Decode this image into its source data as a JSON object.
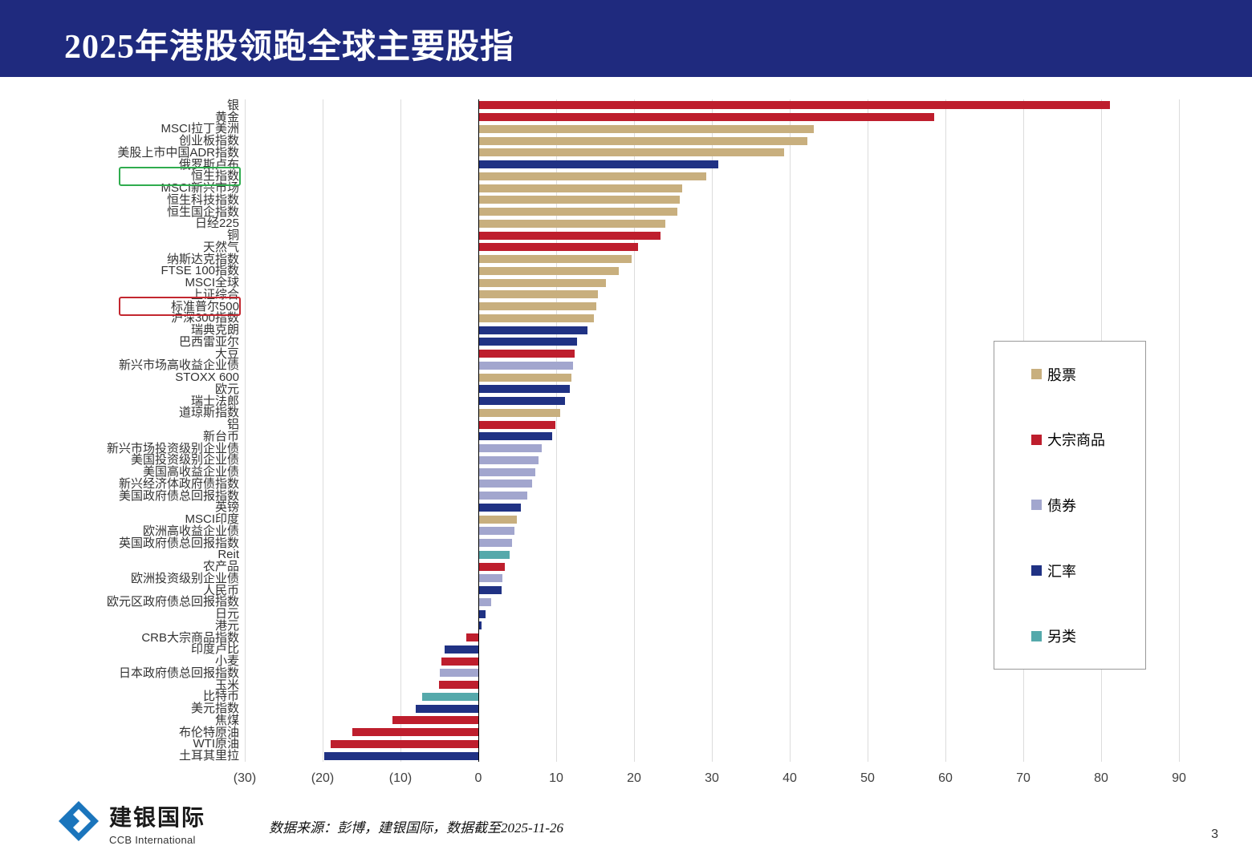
{
  "header": {
    "title": "2025年港股领跑全球主要股指",
    "bg_color": "#1F2A7E"
  },
  "chart_data": {
    "type": "bar",
    "orientation": "horizontal",
    "unit": "%",
    "xlim": [
      -30,
      90
    ],
    "x_ticks": [
      -30,
      -20,
      -10,
      0,
      10,
      20,
      30,
      40,
      50,
      60,
      70,
      80,
      90
    ],
    "x_tick_labels": [
      "(30)",
      "(20)",
      "(10)",
      "0",
      "10",
      "20",
      "30",
      "40",
      "50",
      "60",
      "70",
      "80",
      "90"
    ],
    "grid": true,
    "legend_position": "right",
    "category_colors": {
      "股票": "#C8AF7E",
      "大宗商品": "#BE1E2D",
      "债券": "#A2A6CE",
      "汇率": "#203284",
      "另类": "#55A9AB"
    },
    "legend": [
      {
        "label": "股票",
        "color": "#C8AF7E"
      },
      {
        "label": "大宗商品",
        "color": "#BE1E2D"
      },
      {
        "label": "债券",
        "color": "#A2A6CE"
      },
      {
        "label": "汇率",
        "color": "#203284"
      },
      {
        "label": "另类",
        "color": "#55A9AB"
      }
    ],
    "items": [
      {
        "label": "银",
        "category": "大宗商品",
        "value": 81.0
      },
      {
        "label": "黄金",
        "category": "大宗商品",
        "value": 58.5
      },
      {
        "label": "MSCI拉丁美洲",
        "category": "股票",
        "value": 43.0
      },
      {
        "label": "创业板指数",
        "category": "股票",
        "value": 42.2
      },
      {
        "label": "美股上市中国ADR指数",
        "category": "股票",
        "value": 39.2
      },
      {
        "label": "俄罗斯卢布",
        "category": "汇率",
        "value": 30.7
      },
      {
        "label": "恒生指数",
        "category": "股票",
        "value": 29.2,
        "highlight": "green"
      },
      {
        "label": "MSCI新兴市场",
        "category": "股票",
        "value": 26.1
      },
      {
        "label": "恒生科技指数",
        "category": "股票",
        "value": 25.8
      },
      {
        "label": "恒生国企指数",
        "category": "股票",
        "value": 25.5
      },
      {
        "label": "日经225",
        "category": "股票",
        "value": 23.9
      },
      {
        "label": "铜",
        "category": "大宗商品",
        "value": 23.3
      },
      {
        "label": "天然气",
        "category": "大宗商品",
        "value": 20.4
      },
      {
        "label": "纳斯达克指数",
        "category": "股票",
        "value": 19.6
      },
      {
        "label": "FTSE 100指数",
        "category": "股票",
        "value": 17.9
      },
      {
        "label": "MSCI全球",
        "category": "股票",
        "value": 16.3
      },
      {
        "label": "上证综合",
        "category": "股票",
        "value": 15.3
      },
      {
        "label": "标准普尔500",
        "category": "股票",
        "value": 15.0,
        "highlight": "red"
      },
      {
        "label": "沪深300指数",
        "category": "股票",
        "value": 14.7
      },
      {
        "label": "瑞典克朗",
        "category": "汇率",
        "value": 13.9
      },
      {
        "label": "巴西雷亚尔",
        "category": "汇率",
        "value": 12.6
      },
      {
        "label": "大豆",
        "category": "大宗商品",
        "value": 12.3
      },
      {
        "label": "新兴市场高收益企业债",
        "category": "债券",
        "value": 12.1
      },
      {
        "label": "STOXX 600",
        "category": "股票",
        "value": 11.9
      },
      {
        "label": "欧元",
        "category": "汇率",
        "value": 11.7
      },
      {
        "label": "瑞士法郎",
        "category": "汇率",
        "value": 11.0
      },
      {
        "label": "道琼斯指数",
        "category": "股票",
        "value": 10.4
      },
      {
        "label": "铝",
        "category": "大宗商品",
        "value": 9.8
      },
      {
        "label": "新台币",
        "category": "汇率",
        "value": 9.4
      },
      {
        "label": "新兴市场投资级别企业债",
        "category": "债券",
        "value": 8.0
      },
      {
        "label": "美国投资级别企业债",
        "category": "债券",
        "value": 7.6
      },
      {
        "label": "美国高收益企业债",
        "category": "债券",
        "value": 7.2
      },
      {
        "label": "新兴经济体政府债指数",
        "category": "债券",
        "value": 6.8
      },
      {
        "label": "美国政府债总回报指数",
        "category": "债券",
        "value": 6.2
      },
      {
        "label": "英镑",
        "category": "汇率",
        "value": 5.4
      },
      {
        "label": "MSCI印度",
        "category": "股票",
        "value": 4.8
      },
      {
        "label": "欧洲高收益企业债",
        "category": "债券",
        "value": 4.5
      },
      {
        "label": "英国政府债总回报指数",
        "category": "债券",
        "value": 4.2
      },
      {
        "label": "Reit",
        "category": "另类",
        "value": 3.9
      },
      {
        "label": "农产品",
        "category": "大宗商品",
        "value": 3.3
      },
      {
        "label": "欧洲投资级别企业债",
        "category": "债券",
        "value": 3.0
      },
      {
        "label": "人民币",
        "category": "汇率",
        "value": 2.9
      },
      {
        "label": "欧元区政府债总回报指数",
        "category": "债券",
        "value": 1.5
      },
      {
        "label": "日元",
        "category": "汇率",
        "value": 0.8
      },
      {
        "label": "港元",
        "category": "汇率",
        "value": 0.3
      },
      {
        "label": "CRB大宗商品指数",
        "category": "大宗商品",
        "value": -1.5
      },
      {
        "label": "印度卢比",
        "category": "汇率",
        "value": -4.3
      },
      {
        "label": "小麦",
        "category": "大宗商品",
        "value": -4.7
      },
      {
        "label": "日本政府债总回报指数",
        "category": "债券",
        "value": -4.9
      },
      {
        "label": "玉米",
        "category": "大宗商品",
        "value": -5.1
      },
      {
        "label": "比特币",
        "category": "另类",
        "value": -7.2
      },
      {
        "label": "美元指数",
        "category": "汇率",
        "value": -8.0
      },
      {
        "label": "焦煤",
        "category": "大宗商品",
        "value": -11.0
      },
      {
        "label": "布伦特原油",
        "category": "大宗商品",
        "value": -16.2
      },
      {
        "label": "WTI原油",
        "category": "大宗商品",
        "value": -19.0
      },
      {
        "label": "土耳其里拉",
        "category": "汇率",
        "value": -19.8
      }
    ]
  },
  "annotations": {
    "green_box_label": "恒生指数",
    "green_box_color": "#2FAC4E",
    "red_box_label": "标准普尔500",
    "red_box_color": "#C3272F"
  },
  "footer": {
    "logo_text": "建银国际",
    "logo_subtext": "CCB International",
    "source": "数据来源：彭博，建银国际，数据截至2025-11-26",
    "page_number": "3"
  }
}
